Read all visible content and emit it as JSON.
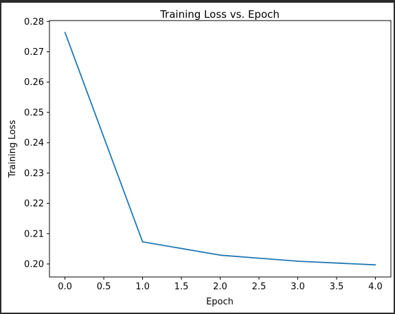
{
  "chart_data": {
    "type": "line",
    "title": "Training Loss vs. Epoch",
    "xlabel": "Epoch",
    "ylabel": "Training Loss",
    "xlim": [
      -0.2,
      4.2
    ],
    "ylim": [
      0.1957,
      0.2803
    ],
    "xticks": [
      "0.0",
      "0.5",
      "1.0",
      "1.5",
      "2.0",
      "2.5",
      "3.0",
      "3.5",
      "4.0"
    ],
    "yticks": [
      "0.20",
      "0.21",
      "0.22",
      "0.23",
      "0.24",
      "0.25",
      "0.26",
      "0.27",
      "0.28"
    ],
    "grid": false,
    "series": [
      {
        "x": [
          0,
          1,
          2,
          3,
          4
        ],
        "y": [
          0.2764,
          0.2073,
          0.2029,
          0.2009,
          0.1997
        ],
        "color": "#1f77b4"
      }
    ]
  }
}
